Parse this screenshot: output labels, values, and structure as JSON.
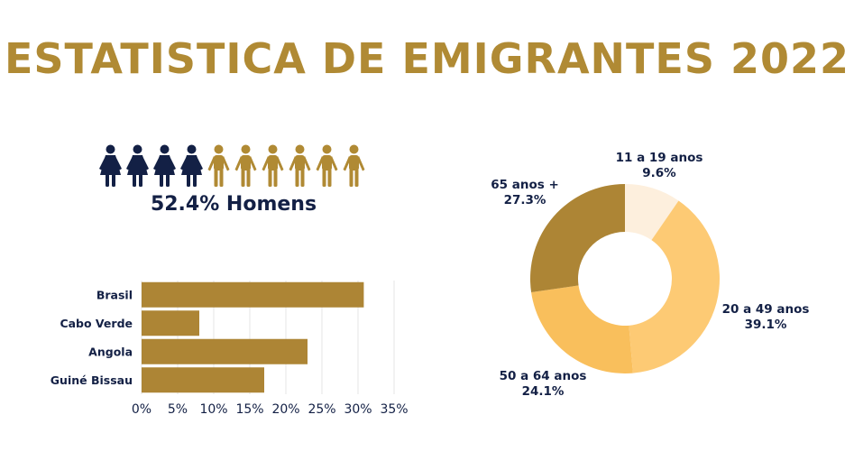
{
  "title": "ESTATISTICA DE EMIGRANTES 2022",
  "colors": {
    "gold": "#B08A34",
    "navy": "#132045",
    "bar": "#AD8535",
    "grid": "#E6E6E6"
  },
  "people_icons": {
    "label": "52.4% Homens",
    "icons": [
      {
        "type": "female",
        "color": "#132045"
      },
      {
        "type": "female",
        "color": "#132045"
      },
      {
        "type": "female",
        "color": "#132045"
      },
      {
        "type": "female",
        "color": "#132045"
      },
      {
        "type": "male",
        "color": "#B08A34"
      },
      {
        "type": "male",
        "color": "#B08A34"
      },
      {
        "type": "male",
        "color": "#B08A34"
      },
      {
        "type": "male",
        "color": "#B08A34"
      },
      {
        "type": "male",
        "color": "#B08A34"
      },
      {
        "type": "male",
        "color": "#B08A34"
      }
    ]
  },
  "chart_data": [
    {
      "type": "bar",
      "orientation": "horizontal",
      "categories": [
        "Brasil",
        "Cabo Verde",
        "Angola",
        "Guiné Bissau"
      ],
      "values": [
        30.8,
        8,
        23,
        17
      ],
      "xlim": [
        0,
        35
      ],
      "xticks": [
        "0%",
        "5%",
        "10%",
        "15%",
        "20%",
        "25%",
        "30%",
        "35%"
      ],
      "grid": true
    },
    {
      "type": "pie",
      "donut": true,
      "slices": [
        {
          "label": "11 a 19 anos",
          "value_label": "9.6%",
          "value": 9.6,
          "color": "#FDEFDD"
        },
        {
          "label": "20 a 49 anos",
          "value_label": "39.1%",
          "value": 39.1,
          "color": "#FDCA74"
        },
        {
          "label": "50 a 64 anos",
          "value_label": "24.1%",
          "value": 24.1,
          "color": "#F9BF5C"
        },
        {
          "label": "65 anos +",
          "value_label": "27.3%",
          "value": 27.3,
          "color": "#AD8535"
        }
      ]
    }
  ]
}
